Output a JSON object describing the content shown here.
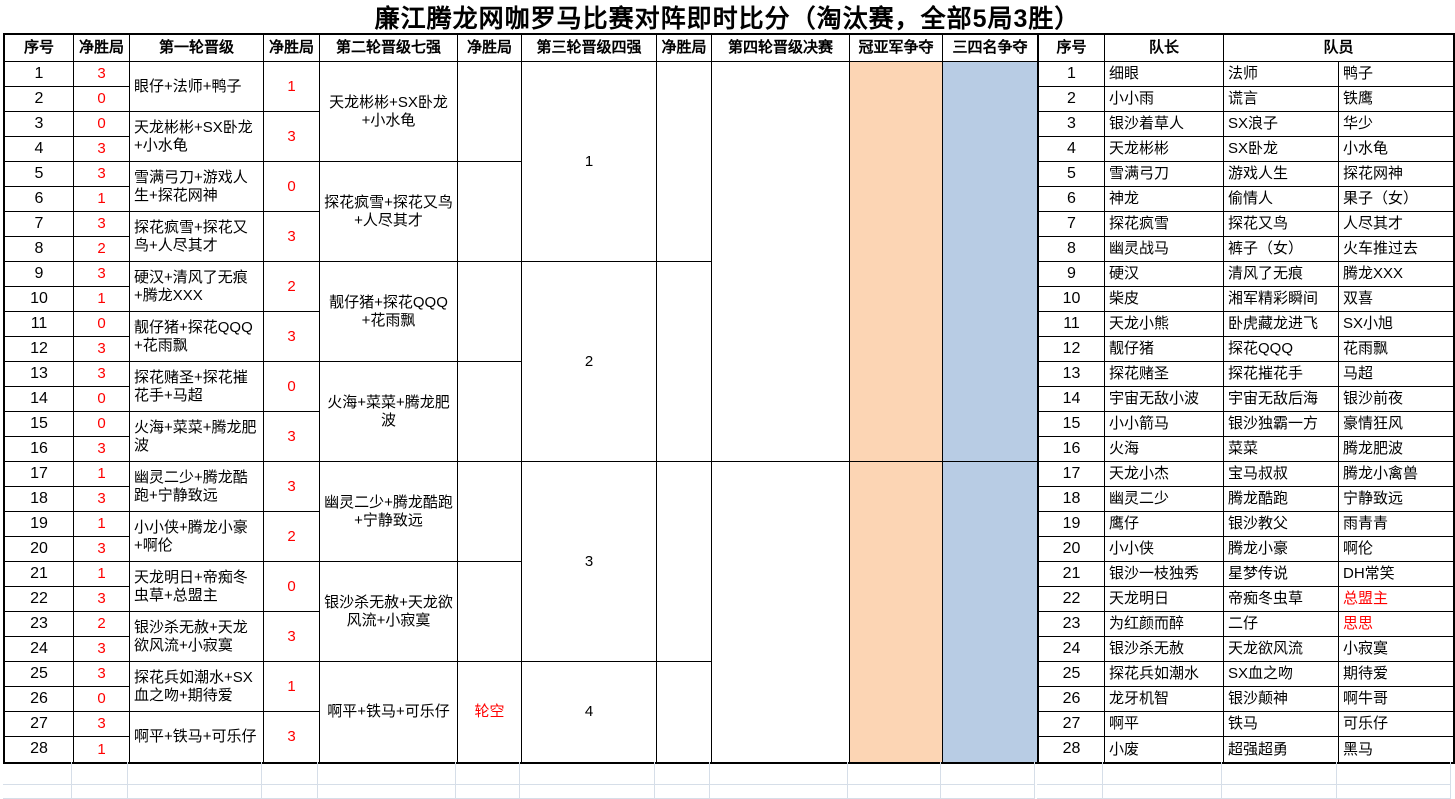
{
  "title": "廉江腾龙网咖罗马比赛对阵即时比分（淘汰赛，全部5局3胜）",
  "colors": {
    "champion_fill": "#FCD5B4",
    "third_place_fill": "#B8CCE4",
    "score_red": "#FF0000",
    "border_black": "#000000",
    "gridline_light": "#D6DEE8"
  },
  "bracket": {
    "header_cells": [
      {
        "label": "序号"
      },
      {
        "label": "净胜局"
      },
      {
        "label": "第一轮晋级"
      },
      {
        "label": "净胜局"
      },
      {
        "label": "第二轮晋级七强"
      },
      {
        "label": "净胜局"
      },
      {
        "label": "第三轮晋级四强"
      },
      {
        "label": "净胜局"
      },
      {
        "label": "第四轮晋级决赛"
      },
      {
        "label": "冠亚军争夺"
      },
      {
        "label": "三四名争夺"
      }
    ],
    "rows": [
      {
        "serial": "1",
        "net_wins": "3"
      },
      {
        "serial": "2",
        "net_wins": "0"
      },
      {
        "serial": "3",
        "net_wins": "0"
      },
      {
        "serial": "4",
        "net_wins": "3"
      },
      {
        "serial": "5",
        "net_wins": "3"
      },
      {
        "serial": "6",
        "net_wins": "1"
      },
      {
        "serial": "7",
        "net_wins": "3"
      },
      {
        "serial": "8",
        "net_wins": "2"
      },
      {
        "serial": "9",
        "net_wins": "3"
      },
      {
        "serial": "10",
        "net_wins": "1"
      },
      {
        "serial": "11",
        "net_wins": "0"
      },
      {
        "serial": "12",
        "net_wins": "3"
      },
      {
        "serial": "13",
        "net_wins": "3"
      },
      {
        "serial": "14",
        "net_wins": "0"
      },
      {
        "serial": "15",
        "net_wins": "0"
      },
      {
        "serial": "16",
        "net_wins": "3"
      },
      {
        "serial": "17",
        "net_wins": "1"
      },
      {
        "serial": "18",
        "net_wins": "3"
      },
      {
        "serial": "19",
        "net_wins": "1"
      },
      {
        "serial": "20",
        "net_wins": "3"
      },
      {
        "serial": "21",
        "net_wins": "1"
      },
      {
        "serial": "22",
        "net_wins": "3"
      },
      {
        "serial": "23",
        "net_wins": "2"
      },
      {
        "serial": "24",
        "net_wins": "3"
      },
      {
        "serial": "25",
        "net_wins": "3"
      },
      {
        "serial": "26",
        "net_wins": "0"
      },
      {
        "serial": "27",
        "net_wins": "3"
      },
      {
        "serial": "28",
        "net_wins": "1"
      }
    ],
    "round1_groups": [
      {
        "team": "眼仔+法师+鸭子",
        "net_wins": "1"
      },
      {
        "team": "天龙彬彬+SX卧龙+小水龟",
        "net_wins": "3"
      },
      {
        "team": "雪满弓刀+游戏人生+探花网神",
        "net_wins": "0"
      },
      {
        "team": "探花疯雪+探花又鸟+人尽其才",
        "net_wins": "3"
      },
      {
        "team": "硬汉+清风了无痕+腾龙XXX",
        "net_wins": "2"
      },
      {
        "team": "靓仔猪+探花QQQ+花雨飘",
        "net_wins": "3"
      },
      {
        "team": "探花赌圣+探花摧花手+马超",
        "net_wins": "0"
      },
      {
        "team": "火海+菜菜+腾龙肥波",
        "net_wins": "3"
      },
      {
        "team": "幽灵二少+腾龙酷跑+宁静致远",
        "net_wins": "3"
      },
      {
        "team": "小小侠+腾龙小豪+啊伦",
        "net_wins": "2"
      },
      {
        "team": "天龙明日+帝痴冬虫草+总盟主",
        "net_wins": "0"
      },
      {
        "team": "银沙杀无赦+天龙欲风流+小寂寞",
        "net_wins": "3"
      },
      {
        "team": "探花兵如潮水+SX血之吻+期待爱",
        "net_wins": "1"
      },
      {
        "team": "啊平+铁马+可乐仔",
        "net_wins": "3"
      }
    ],
    "round2_groups": [
      {
        "team": "天龙彬彬+SX卧龙+小水龟",
        "net_wins": ""
      },
      {
        "team": "探花疯雪+探花又鸟+人尽其才",
        "net_wins": ""
      },
      {
        "team": "靓仔猪+探花QQQ+花雨飘",
        "net_wins": ""
      },
      {
        "team": "火海+菜菜+腾龙肥波",
        "net_wins": ""
      },
      {
        "team": "幽灵二少+腾龙酷跑+宁静致远",
        "net_wins": ""
      },
      {
        "team": "银沙杀无赦+天龙欲风流+小寂寞",
        "net_wins": ""
      },
      {
        "team": "啊平+铁马+可乐仔",
        "net_wins": "轮空"
      }
    ],
    "round3_groups": [
      {
        "seed": "1",
        "net_wins": "",
        "row_span": 8
      },
      {
        "seed": "2",
        "net_wins": "",
        "row_span": 8
      },
      {
        "seed": "3",
        "net_wins": "",
        "row_span": 8
      },
      {
        "seed": "4",
        "net_wins": "",
        "row_span": 4
      }
    ],
    "round4_groups": [
      {
        "text": "",
        "row_span": 16
      },
      {
        "text": "",
        "row_span": 12
      }
    ]
  },
  "roster": {
    "header_cells": [
      {
        "label": "序号"
      },
      {
        "label": "队长"
      },
      {
        "label": "队员"
      }
    ],
    "rows": [
      {
        "serial": "1",
        "captain": "细眼",
        "member1": "法师",
        "member2": "鸭子",
        "member2_red": false
      },
      {
        "serial": "2",
        "captain": "小小雨",
        "member1": "谎言",
        "member2": "铁鹰",
        "member2_red": false
      },
      {
        "serial": "3",
        "captain": "银沙着草人",
        "member1": "SX浪子",
        "member2": "华少",
        "member2_red": false
      },
      {
        "serial": "4",
        "captain": "天龙彬彬",
        "member1": "SX卧龙",
        "member2": "小水龟",
        "member2_red": false
      },
      {
        "serial": "5",
        "captain": "雪满弓刀",
        "member1": "游戏人生",
        "member2": "探花网神",
        "member2_red": false
      },
      {
        "serial": "6",
        "captain": "神龙",
        "member1": "偷情人",
        "member2": "果子（女）",
        "member2_red": false
      },
      {
        "serial": "7",
        "captain": "探花疯雪",
        "member1": "探花又鸟",
        "member2": "人尽其才",
        "member2_red": false
      },
      {
        "serial": "8",
        "captain": "幽灵战马",
        "member1": "裤子（女）",
        "member2": "火车推过去",
        "member2_red": false
      },
      {
        "serial": "9",
        "captain": "硬汉",
        "member1": "清风了无痕",
        "member2": "腾龙XXX",
        "member2_red": false
      },
      {
        "serial": "10",
        "captain": "柴皮",
        "member1": "湘军精彩瞬间",
        "member2": "双喜",
        "member2_red": false
      },
      {
        "serial": "11",
        "captain": "天龙小熊",
        "member1": "卧虎藏龙进飞",
        "member2": "SX小旭",
        "member2_red": false
      },
      {
        "serial": "12",
        "captain": "靓仔猪",
        "member1": "探花QQQ",
        "member2": "花雨飘",
        "member2_red": false
      },
      {
        "serial": "13",
        "captain": "探花赌圣",
        "member1": "探花摧花手",
        "member2": "马超",
        "member2_red": false
      },
      {
        "serial": "14",
        "captain": "宇宙无敌小波",
        "member1": "宇宙无敌后海",
        "member2": "银沙前夜",
        "member2_red": false
      },
      {
        "serial": "15",
        "captain": "小小箭马",
        "member1": "银沙独霸一方",
        "member2": "豪情狂风",
        "member2_red": false
      },
      {
        "serial": "16",
        "captain": "火海",
        "member1": "菜菜",
        "member2": "腾龙肥波",
        "member2_red": false
      },
      {
        "serial": "17",
        "captain": "天龙小杰",
        "member1": "宝马叔叔",
        "member2": "腾龙小禽兽",
        "member2_red": false
      },
      {
        "serial": "18",
        "captain": "幽灵二少",
        "member1": "腾龙酷跑",
        "member2": "宁静致远",
        "member2_red": false
      },
      {
        "serial": "19",
        "captain": "鹰仔",
        "member1": "银沙教父",
        "member2": "雨青青",
        "member2_red": false
      },
      {
        "serial": "20",
        "captain": "小小侠",
        "member1": "腾龙小豪",
        "member2": "啊伦",
        "member2_red": false
      },
      {
        "serial": "21",
        "captain": "银沙一枝独秀",
        "member1": "星梦传说",
        "member2": "DH常笑",
        "member2_red": false
      },
      {
        "serial": "22",
        "captain": "天龙明日",
        "member1": "帝痴冬虫草",
        "member2": "总盟主",
        "member2_red": true
      },
      {
        "serial": "23",
        "captain": "为红颜而醉",
        "member1": "二仔",
        "member2": "思思",
        "member2_red": true
      },
      {
        "serial": "24",
        "captain": "银沙杀无赦",
        "member1": "天龙欲风流",
        "member2": "小寂寞",
        "member2_red": false
      },
      {
        "serial": "25",
        "captain": "探花兵如潮水",
        "member1": "SX血之吻",
        "member2": "期待爱",
        "member2_red": false
      },
      {
        "serial": "26",
        "captain": "龙牙机智",
        "member1": "银沙颠神",
        "member2": "啊牛哥",
        "member2_red": false
      },
      {
        "serial": "27",
        "captain": "啊平",
        "member1": "铁马",
        "member2": "可乐仔",
        "member2_red": false
      },
      {
        "serial": "28",
        "captain": "小废",
        "member1": "超强超勇",
        "member2": "黑马",
        "member2_red": false
      }
    ]
  }
}
